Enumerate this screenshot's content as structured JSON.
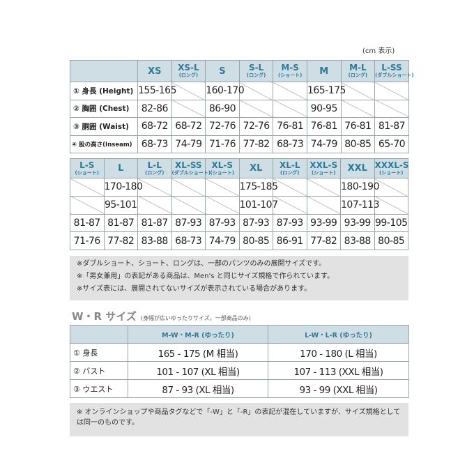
{
  "unit_label": "(cm 表示)",
  "table1": {
    "headers": [
      {
        "main": "XS",
        "sub": ""
      },
      {
        "main": "XS-L",
        "sub": "(ロング)"
      },
      {
        "main": "S",
        "sub": ""
      },
      {
        "main": "S-L",
        "sub": "(ロング)"
      },
      {
        "main": "M-S",
        "sub": "(ショート)"
      },
      {
        "main": "M",
        "sub": ""
      },
      {
        "main": "M-L",
        "sub": "(ロング)"
      },
      {
        "main": "L-SS",
        "sub": "(ダブルショート)"
      }
    ],
    "rows": [
      {
        "label": "① 身長 (Height)",
        "cells": [
          "155-165",
          "",
          "160-170",
          "",
          "",
          "165-175",
          "",
          ""
        ]
      },
      {
        "label": "② 胸囲 (Chest)",
        "cells": [
          "82-86",
          "",
          "86-90",
          "",
          "",
          "90-95",
          "",
          ""
        ]
      },
      {
        "label": "③ 胴囲 (Waist)",
        "cells": [
          "68-72",
          "68-72",
          "72-76",
          "72-76",
          "76-81",
          "76-81",
          "76-81",
          "81-87"
        ]
      },
      {
        "label": "④ 股の高さ(Inseam)",
        "cells": [
          "68-73",
          "74-79",
          "71-76",
          "77-82",
          "68-73",
          "74-79",
          "80-85",
          "65-70"
        ]
      }
    ]
  },
  "table2": {
    "headers": [
      {
        "main": "L-S",
        "sub": "(ショート)"
      },
      {
        "main": "L",
        "sub": ""
      },
      {
        "main": "L-L",
        "sub": "(ロング)"
      },
      {
        "main": "XL-SS",
        "sub": "(ダブルショート)"
      },
      {
        "main": "XL-S",
        "sub": "(ショート)"
      },
      {
        "main": "XL",
        "sub": ""
      },
      {
        "main": "XL-L",
        "sub": "(ロング)"
      },
      {
        "main": "XXL-S",
        "sub": "(ショート)"
      },
      {
        "main": "XXL",
        "sub": ""
      },
      {
        "main": "XXXL-S",
        "sub": "(ショート)"
      }
    ],
    "rows": [
      {
        "cells": [
          "",
          "170-180",
          "",
          "",
          "",
          "175-185",
          "",
          "",
          "180-190",
          ""
        ]
      },
      {
        "cells": [
          "",
          "95-101",
          "",
          "",
          "",
          "101-107",
          "",
          "",
          "107-113",
          ""
        ]
      },
      {
        "cells": [
          "81-87",
          "81-87",
          "81-87",
          "87-93",
          "87-93",
          "87-93",
          "87-93",
          "93-99",
          "93-99",
          "99-105"
        ]
      },
      {
        "cells": [
          "71-76",
          "77-82",
          "83-88",
          "68-73",
          "74-79",
          "80-85",
          "86-91",
          "77-82",
          "83-88",
          "80-85"
        ]
      }
    ]
  },
  "notes1": [
    "※ダブルショート、ショート、ロングは、一部のパンツのみの展開サイズです。",
    "※「男女兼用」の表記がある商品は、Men's と同じサイズ規格で作られています。",
    "※サイズ表には、展開されてないサイズが表示されている場合があります。"
  ],
  "wr": {
    "title": "W・R サイズ",
    "subtitle": "(身幅が広いゆったりサイズ。一部商品のみ)",
    "headers": [
      "M-W・M-R (ゆったり)",
      "L-W・L-R (ゆったり)"
    ],
    "rows": [
      {
        "label": "① 身長",
        "cells": [
          "165 - 175 (M 相当)",
          "170 - 180 (L 相当)"
        ]
      },
      {
        "label": "② バスト",
        "cells": [
          "101 - 107 (XL 相当)",
          "107 - 113 (XXL 相当)"
        ]
      },
      {
        "label": "③ ウエスト",
        "cells": [
          "87 - 93 (XL 相当)",
          "93 - 99 (XXL 相当)"
        ]
      }
    ],
    "note": "※ オンラインショップや商品タグなどで「-W」と「-R」の表記が混在していますが、サイズ規格としては同一のものです。"
  },
  "colors": {
    "header_bg": "#cfdde4",
    "header_text": "#2e7a99",
    "note_bg": "#e2e2e2"
  }
}
